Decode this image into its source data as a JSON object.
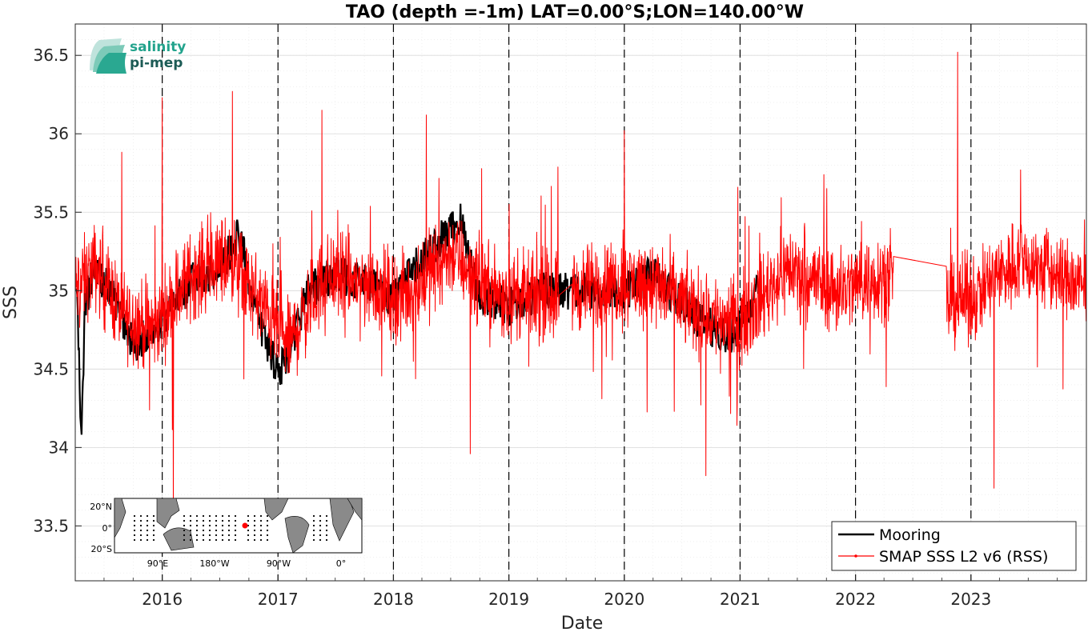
{
  "chart_data": {
    "type": "line",
    "title": "TAO (depth =-1m) LAT=0.00°S;LON=140.00°W",
    "xlabel": "Date",
    "ylabel": "SSS",
    "xlim": [
      "2015-04-01",
      "2024-01-01"
    ],
    "ylim": [
      33.15,
      36.7
    ],
    "x_ticks": [
      "2016",
      "2017",
      "2018",
      "2019",
      "2020",
      "2021",
      "2022",
      "2023"
    ],
    "y_ticks": [
      "33.5",
      "34",
      "34.5",
      "35",
      "35.5",
      "36",
      "36.5"
    ],
    "grid": "on",
    "year_markers": "dashed vertical lines at each year start",
    "legend_position": "bottom-right",
    "series": [
      {
        "name": "Mooring",
        "color": "#000000",
        "description_points": [
          [
            "2015-04-05",
            35.05
          ],
          [
            "2015-04-15",
            34.4
          ],
          [
            "2015-04-20",
            33.96
          ],
          [
            "2015-05-01",
            34.9
          ],
          [
            "2015-06-01",
            35.15
          ],
          [
            "2015-08-01",
            34.95
          ],
          [
            "2015-10-01",
            34.65
          ],
          [
            "2015-12-01",
            34.75
          ],
          [
            "2016-02-01",
            34.9
          ],
          [
            "2016-04-01",
            35.05
          ],
          [
            "2016-07-01",
            35.15
          ],
          [
            "2016-09-01",
            35.35
          ],
          [
            "2016-11-01",
            34.8
          ],
          [
            "2017-01-01",
            34.5
          ],
          [
            "2017-02-01",
            34.55
          ],
          [
            "2017-04-01",
            35.0
          ],
          [
            "2017-07-01",
            35.1
          ],
          [
            "2017-10-01",
            35.05
          ],
          [
            "2018-01-01",
            34.95
          ],
          [
            "2018-04-01",
            35.2
          ],
          [
            "2018-08-01",
            35.45
          ],
          [
            "2018-10-01",
            34.95
          ],
          [
            "2019-01-01",
            34.9
          ],
          [
            "2019-05-01",
            35.0
          ],
          [
            "2019-08-01",
            35.0
          ],
          [
            "2020-01-01",
            35.0
          ],
          [
            "2020-04-01",
            35.1
          ],
          [
            "2020-09-01",
            34.8
          ],
          [
            "2020-12-01",
            34.7
          ],
          [
            "2021-03-01",
            35.0
          ]
        ]
      },
      {
        "name": "SMAP SSS L2 v6 (RSS)",
        "color": "#ff0000",
        "baseline": [
          [
            "2015-04-01",
            35.0
          ],
          [
            "2015-06-01",
            35.15
          ],
          [
            "2015-09-01",
            34.85
          ],
          [
            "2015-12-01",
            34.75
          ],
          [
            "2016-04-01",
            35.1
          ],
          [
            "2016-08-01",
            35.2
          ],
          [
            "2016-12-01",
            34.85
          ],
          [
            "2017-02-01",
            34.65
          ],
          [
            "2017-06-01",
            35.1
          ],
          [
            "2017-10-01",
            35.05
          ],
          [
            "2018-02-01",
            34.95
          ],
          [
            "2018-07-01",
            35.25
          ],
          [
            "2018-11-01",
            35.0
          ],
          [
            "2019-03-01",
            34.95
          ],
          [
            "2019-08-01",
            35.0
          ],
          [
            "2019-12-01",
            35.05
          ],
          [
            "2020-04-01",
            35.05
          ],
          [
            "2020-09-01",
            34.85
          ],
          [
            "2021-01-01",
            34.8
          ],
          [
            "2021-06-01",
            35.15
          ],
          [
            "2021-11-01",
            35.0
          ],
          [
            "2022-04-01",
            35.1
          ],
          [
            "2022-09-01",
            34.9
          ],
          [
            "2023-01-01",
            34.95
          ],
          [
            "2023-06-01",
            35.2
          ],
          [
            "2023-10-01",
            35.1
          ],
          [
            "2024-01-01",
            35.0
          ]
        ],
        "noise_amplitude": 0.35,
        "notable_points": [
          [
            "2016-01-01",
            36.23
          ],
          [
            "2016-02-05",
            33.55
          ],
          [
            "2016-08-10",
            36.27
          ],
          [
            "2018-04-15",
            36.12
          ],
          [
            "2020-01-01",
            36.02
          ],
          [
            "2020-09-15",
            33.82
          ],
          [
            "2022-11-20",
            36.52
          ],
          [
            "2023-03-15",
            33.74
          ],
          [
            "2017-05-20",
            36.15
          ],
          [
            "2018-09-01",
            33.96
          ]
        ],
        "gaps": [
          [
            "2019-06-10",
            "2019-07-20"
          ],
          [
            "2022-05-01",
            "2022-10-15"
          ]
        ]
      }
    ]
  },
  "legend": {
    "mooring": "Mooring",
    "smap": "SMAP SSS L2 v6 (RSS)"
  },
  "logo": {
    "line1": "salinity",
    "line2": "pi-mep"
  },
  "inset": {
    "y_labels": [
      "20°N",
      "0°",
      "20°S"
    ],
    "x_labels": [
      "90°E",
      "180°W",
      "90°W",
      "0°"
    ],
    "marker_color": "#ff0000"
  }
}
